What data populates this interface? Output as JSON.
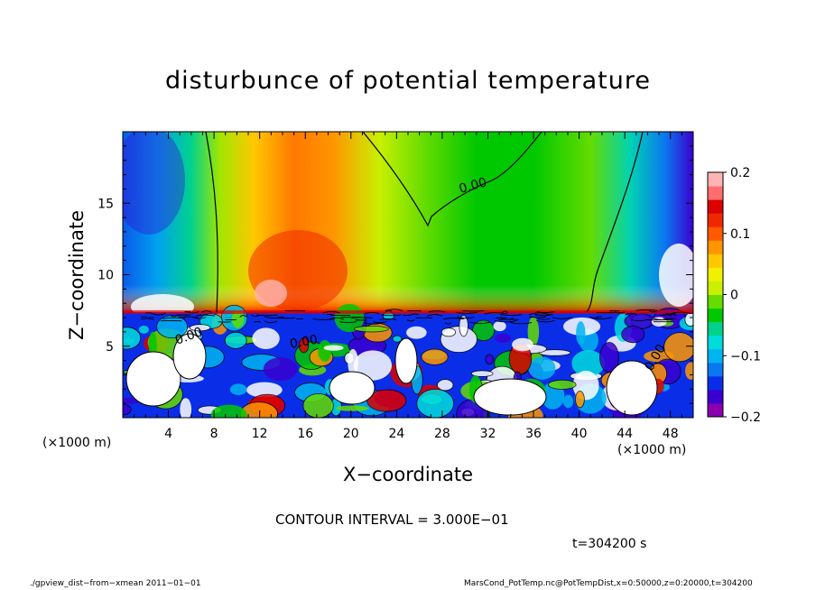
{
  "chart_data": {
    "type": "heatmap",
    "title": "disturbunce of potential temperature",
    "xlabel": "X−coordinate",
    "ylabel": "Z−coordinate",
    "x_unit": "(×1000 m)",
    "z_unit": "(×1000 m)",
    "xlim": [
      0,
      50
    ],
    "zlim": [
      0,
      20
    ],
    "x_ticks": [
      "4",
      "8",
      "12",
      "16",
      "20",
      "24",
      "28",
      "32",
      "36",
      "40",
      "44",
      "48"
    ],
    "z_ticks": [
      "5",
      "10",
      "15"
    ],
    "colorbar": {
      "range": [
        -0.2,
        0.2
      ],
      "ticks": [
        "0.2",
        "0.1",
        "0",
        "−0.1",
        "−0.2"
      ],
      "colors": [
        "#8a00b0",
        "#3a00d0",
        "#0a2ee8",
        "#0a78f0",
        "#00b4f0",
        "#00dcdc",
        "#00d28c",
        "#00c800",
        "#64dc00",
        "#c8f000",
        "#f0f000",
        "#ffc800",
        "#ff9600",
        "#ff5a00",
        "#f02800",
        "#dc0000",
        "#ff6e6e",
        "#ffb4b4"
      ]
    },
    "contour_labels": [
      "0.00",
      "0.00",
      "0.00",
      "0.00"
    ],
    "contour_interval": "CONTOUR INTERVAL = 3.000E−01",
    "time": "t=304200 s"
  },
  "footer": {
    "left": "./gpview_dist−from−xmean  2011−01−01",
    "right": "MarsCond_PotTemp.nc@PotTempDist,x=0:50000,z=0:20000,t=304200"
  }
}
